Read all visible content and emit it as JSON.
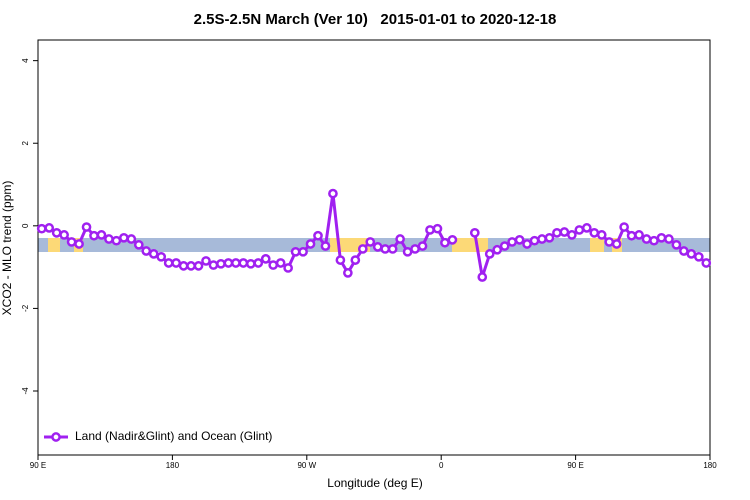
{
  "chart_data": {
    "type": "line",
    "title": "2.5S-2.5N March (Ver 10)   2015-01-01 to 2020-12-18",
    "x_label": "Longitude (deg E)",
    "y_label": "XCO2 - MLO trend (ppm)",
    "x": [
      92.5,
      97.5,
      102.5,
      107.5,
      112.5,
      117.5,
      122.5,
      127.5,
      132.5,
      137.5,
      142.5,
      147.5,
      152.5,
      157.5,
      162.5,
      167.5,
      172.5,
      177.5,
      182.5,
      187.5,
      192.5,
      197.5,
      202.5,
      207.5,
      212.5,
      217.5,
      222.5,
      227.5,
      232.5,
      237.5,
      242.5,
      247.5,
      252.5,
      257.5,
      262.5,
      267.5,
      272.5,
      277.5,
      282.5,
      287.5,
      292.5,
      297.5,
      302.5,
      307.5,
      312.5,
      317.5,
      322.5,
      327.5,
      332.5,
      337.5,
      342.5,
      347.5,
      352.5,
      357.5,
      362.5,
      367.5,
      372.5,
      377.5,
      382.5,
      387.5,
      392.5,
      397.5,
      402.5,
      407.5,
      412.5,
      417.5,
      422.5,
      427.5,
      432.5,
      437.5,
      442.5,
      447.5,
      452.5,
      457.5,
      462.5,
      467.5,
      472.5,
      477.5,
      482.5,
      487.5,
      492.5,
      497.5,
      502.5,
      507.5,
      512.5,
      517.5,
      522.5,
      527.5,
      532.5,
      537.5
    ],
    "series": [
      {
        "name": "Land (Nadir&Glint) and Ocean (Glint)",
        "color": "#a020f0",
        "values": [
          -0.07,
          -0.05,
          -0.17,
          -0.22,
          -0.39,
          -0.44,
          -0.03,
          -0.24,
          -0.22,
          -0.32,
          -0.36,
          -0.29,
          -0.32,
          -0.46,
          -0.61,
          -0.68,
          -0.75,
          -0.9,
          -0.9,
          -0.97,
          -0.97,
          -0.97,
          -0.85,
          -0.95,
          -0.92,
          -0.9,
          -0.9,
          -0.9,
          -0.92,
          -0.9,
          -0.8,
          -0.95,
          -0.9,
          -1.02,
          -0.63,
          -0.63,
          -0.44,
          -0.24,
          -0.49,
          0.78,
          -0.83,
          -1.14,
          -0.83,
          -0.56,
          -0.39,
          -0.51,
          -0.56,
          -0.56,
          -0.32,
          -0.63,
          -0.56,
          -0.49,
          -0.1,
          -0.07,
          -0.41,
          -0.34,
          null,
          null,
          -0.17,
          -1.24,
          -0.68,
          -0.58,
          -0.49,
          -0.39,
          -0.34,
          -0.44,
          -0.36,
          -0.32,
          -0.29,
          -0.17,
          -0.15,
          -0.22,
          -0.1,
          -0.05,
          -0.17,
          -0.22,
          -0.39,
          -0.44,
          -0.03,
          -0.24,
          -0.22,
          -0.32,
          -0.36,
          -0.29,
          -0.32,
          -0.46,
          -0.61,
          -0.68,
          -0.75,
          -0.9
        ]
      }
    ],
    "xlim": [
      90,
      540
    ],
    "xticks": [
      {
        "value": 90,
        "label": "90 E"
      },
      180,
      {
        "value": 270,
        "label": "90 W"
      },
      {
        "value": 360,
        "label": "0"
      },
      {
        "value": 450,
        "label": "90 E"
      },
      {
        "value": 540,
        "label": "180"
      }
    ],
    "ylim": [
      -5.55,
      4.5
    ],
    "yticks": [
      4,
      2,
      0,
      -2,
      -4
    ],
    "legend": "bottom-left"
  }
}
